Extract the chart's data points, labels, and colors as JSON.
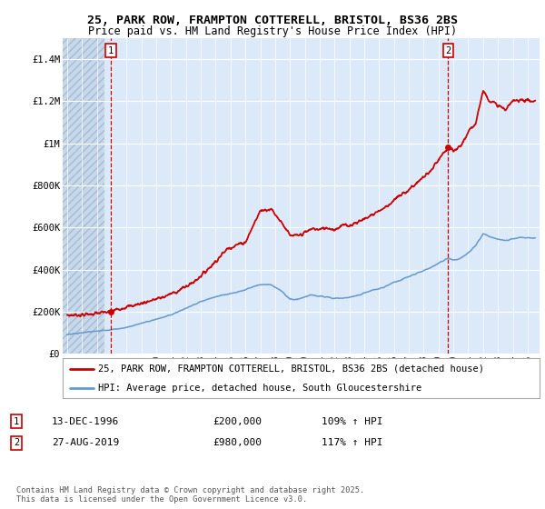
{
  "title_line1": "25, PARK ROW, FRAMPTON COTTERELL, BRISTOL, BS36 2BS",
  "title_line2": "Price paid vs. HM Land Registry's House Price Index (HPI)",
  "fig_bg_color": "#ffffff",
  "plot_bg_color": "#dce9f8",
  "red_line_color": "#cc0000",
  "blue_line_color": "#6699cc",
  "grid_color": "#ffffff",
  "vline_color": "#cc0000",
  "ylim": [
    0,
    1500000
  ],
  "xlim_start": 1993.7,
  "xlim_end": 2025.8,
  "yticks": [
    0,
    200000,
    400000,
    600000,
    800000,
    1000000,
    1200000,
    1400000
  ],
  "ytick_labels": [
    "£0",
    "£200K",
    "£400K",
    "£600K",
    "£800K",
    "£1M",
    "£1.2M",
    "£1.4M"
  ],
  "sale1_date_num": 1996.95,
  "sale1_price": 200000,
  "sale1_label": "1",
  "sale1_date_str": "13-DEC-1996",
  "sale1_price_str": "£200,000",
  "sale1_hpi_str": "109% ↑ HPI",
  "sale2_date_num": 2019.65,
  "sale2_price": 980000,
  "sale2_label": "2",
  "sale2_date_str": "27-AUG-2019",
  "sale2_price_str": "£980,000",
  "sale2_hpi_str": "117% ↑ HPI",
  "legend_line1": "25, PARK ROW, FRAMPTON COTTERELL, BRISTOL, BS36 2BS (detached house)",
  "legend_line2": "HPI: Average price, detached house, South Gloucestershire",
  "footnote": "Contains HM Land Registry data © Crown copyright and database right 2025.\nThis data is licensed under the Open Government Licence v3.0.",
  "hatch_end": 1996.5
}
